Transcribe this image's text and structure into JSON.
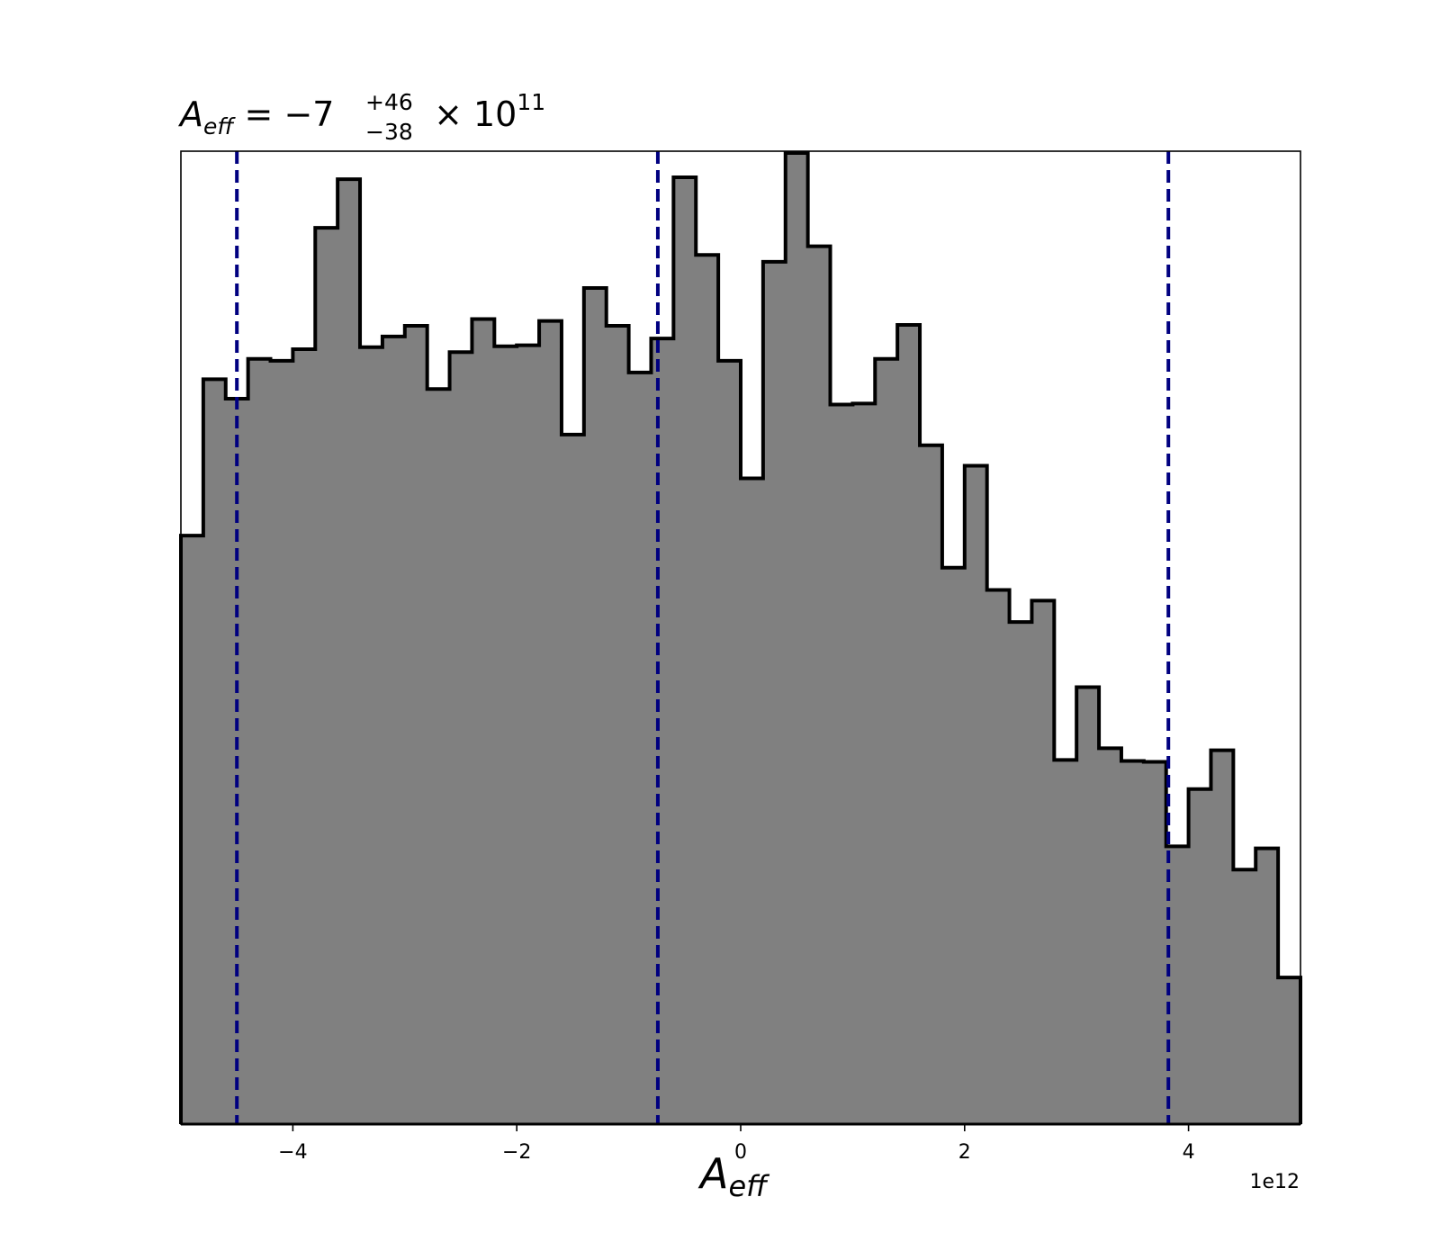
{
  "chart_data": {
    "type": "histogram",
    "title": {
      "var_main": "A",
      "var_sub": "eff",
      "equals": " = ",
      "value": "−7",
      "sup": "+46",
      "sub": "−38",
      "times": " × 10",
      "exponent": "11"
    },
    "xlabel": {
      "main": "A",
      "sub": "eff"
    },
    "x_offset_label": "1e12",
    "xlim": [
      -5.0,
      5.0
    ],
    "bin_width": 0.2,
    "bin_start": -5.0,
    "counts": [
      606,
      767,
      747,
      788,
      786,
      798,
      923,
      973,
      800,
      811,
      822,
      757,
      795,
      829,
      801,
      802,
      827,
      710,
      861,
      822,
      774,
      809,
      975,
      895,
      786,
      665,
      888,
      1000,
      904,
      741,
      742,
      788,
      823,
      699,
      573,
      678,
      550,
      517,
      539,
      375,
      450,
      387,
      374,
      373,
      286,
      345,
      385,
      262,
      284,
      151
    ],
    "ymax": 1000,
    "xticks": [
      -4,
      -2,
      0,
      2,
      4
    ],
    "xtick_labels": [
      "−4",
      "−2",
      "0",
      "2",
      "4"
    ],
    "quantile_lines": [
      -4.5,
      -0.74,
      3.82
    ],
    "colors": {
      "fill": "#808080",
      "edge": "#000000",
      "quantile_line": "#000080"
    }
  }
}
